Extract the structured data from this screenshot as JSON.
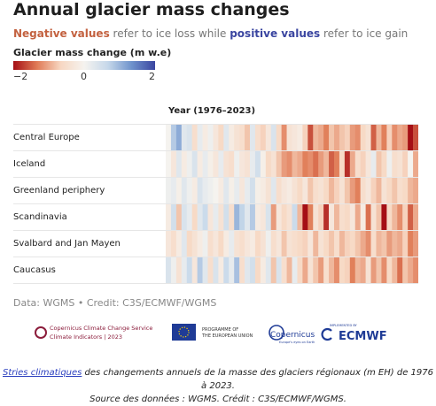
{
  "header": {
    "title": "Annual glacier mass changes",
    "subtitle_neg": "Negative values",
    "subtitle_mid": " refer to ice loss while ",
    "subtitle_pos": "positive values",
    "subtitle_end": " refer to ice gain"
  },
  "legend": {
    "title": "Glacier mass change (m w.e)",
    "ticks": [
      "−2",
      "0",
      "2"
    ],
    "colors": [
      "#a50f15",
      "#e07b56",
      "#f7d7c2",
      "#f5f3ef",
      "#c6d8ea",
      "#6f93cc",
      "#3a45a0"
    ]
  },
  "chart_data": {
    "type": "heatmap",
    "title": "Annual glacier mass changes",
    "xlabel": "Year (1976–2023)",
    "x_range": [
      1976,
      2023
    ],
    "color_range": [
      -2,
      2
    ],
    "rows": [
      "Central Europe",
      "Iceland",
      "Greenland periphery",
      "Scandinavia",
      "Svalbard and Jan Mayen",
      "Caucasus"
    ],
    "values": [
      [
        0.0,
        0.8,
        1.1,
        0.3,
        0.4,
        -0.5,
        0.2,
        -0.2,
        0.1,
        -0.3,
        -0.6,
        0.3,
        -0.2,
        -0.4,
        -0.5,
        -0.8,
        0.3,
        -0.5,
        -0.7,
        -0.3,
        0.4,
        -0.6,
        -1.2,
        -0.4,
        -0.3,
        -0.2,
        -0.7,
        -1.6,
        -0.9,
        -1.0,
        -1.3,
        -0.8,
        -1.0,
        -0.8,
        -0.7,
        -1.1,
        -1.2,
        -0.6,
        -0.4,
        -1.5,
        -0.9,
        -1.3,
        -0.7,
        -1.2,
        -1.0,
        -1.1,
        -2.6,
        -1.6
      ],
      [
        0.0,
        -0.3,
        0.3,
        -0.2,
        0.1,
        0.4,
        -0.2,
        0.2,
        -0.1,
        -0.3,
        0.2,
        -0.4,
        -0.5,
        0.1,
        -0.3,
        -0.4,
        0.2,
        0.5,
        -0.1,
        -0.6,
        -0.4,
        -0.8,
        -1.1,
        -1.2,
        -0.9,
        -1.0,
        -1.3,
        -1.2,
        -1.4,
        -1.1,
        -0.9,
        -1.5,
        -1.3,
        -0.6,
        -1.8,
        -1.0,
        -0.5,
        -0.7,
        -0.3,
        0.2,
        -0.8,
        -0.6,
        0.1,
        -0.5,
        -0.4,
        -0.7,
        0.0,
        -1.0
      ],
      [
        0.1,
        0.2,
        -0.1,
        0.3,
        0.1,
        -0.2,
        0.4,
        0.2,
        0.1,
        0.0,
        -0.2,
        0.3,
        -0.1,
        0.2,
        -0.3,
        0.2,
        0.5,
        -0.1,
        -0.2,
        -0.4,
        0.3,
        -0.5,
        -0.3,
        -0.2,
        -0.4,
        -0.6,
        -0.3,
        -0.8,
        -0.5,
        -0.4,
        -0.6,
        -0.9,
        -0.7,
        -0.4,
        -0.8,
        -1.1,
        -1.3,
        -0.5,
        -0.3,
        -0.7,
        -0.9,
        -0.4,
        -0.6,
        -0.8,
        -0.5,
        -0.6,
        -0.9,
        -1.0
      ],
      [
        -0.2,
        0.5,
        -0.8,
        0.4,
        0.2,
        -0.6,
        0.3,
        0.6,
        -0.3,
        0.2,
        -0.4,
        0.5,
        -0.5,
        1.0,
        0.7,
        0.3,
        0.8,
        -0.2,
        -0.3,
        0.4,
        -1.1,
        -0.3,
        -0.6,
        -0.4,
        0.6,
        -0.9,
        -2.5,
        -1.3,
        -0.4,
        -0.7,
        -1.8,
        -0.3,
        -0.9,
        -0.5,
        -0.6,
        -0.3,
        -1.0,
        -0.2,
        -1.4,
        -0.4,
        -0.8,
        -2.7,
        -0.6,
        -0.9,
        -1.2,
        -0.7,
        -1.5,
        -1.0
      ],
      [
        -0.3,
        -0.5,
        -0.2,
        0.3,
        -0.6,
        -0.4,
        -0.2,
        0.1,
        -0.5,
        -0.3,
        -0.6,
        -0.2,
        0.2,
        -0.4,
        -0.5,
        -0.3,
        -0.2,
        -0.6,
        -0.4,
        0.1,
        -0.5,
        -0.3,
        -0.8,
        -0.4,
        -0.5,
        -0.6,
        -0.7,
        -0.3,
        -0.9,
        -0.4,
        -0.6,
        -0.8,
        -0.5,
        -0.9,
        -0.7,
        -0.6,
        -0.8,
        -1.0,
        -1.2,
        -0.5,
        -0.9,
        -0.8,
        -1.1,
        -0.9,
        -1.0,
        -0.7,
        -1.3,
        -1.1
      ],
      [
        0.4,
        0.1,
        -0.4,
        0.2,
        0.6,
        -0.3,
        0.8,
        0.3,
        -0.5,
        0.4,
        -0.2,
        0.6,
        0.2,
        0.9,
        -0.5,
        0.3,
        0.5,
        -0.6,
        -0.2,
        0.3,
        -0.8,
        0.4,
        -0.5,
        -0.9,
        0.2,
        -0.6,
        -1.0,
        -0.4,
        -0.8,
        -1.1,
        -0.5,
        -0.9,
        -1.2,
        -0.6,
        -0.7,
        -1.3,
        -0.9,
        -1.0,
        -0.4,
        -1.1,
        -0.8,
        -1.2,
        -0.6,
        -0.9,
        -1.4,
        -0.8,
        -1.0,
        -1.2
      ]
    ]
  },
  "footer": {
    "source": "Data: WGMS • Credit: C3S/ECMWF/WGMS",
    "logo_c3s_line1": "Copernicus Climate Change Service",
    "logo_c3s_line2": "Climate Indicators | 2023",
    "logo_eu_line1": "PROGRAMME OF",
    "logo_eu_line2": "THE EUROPEAN UNION",
    "logo_copernicus": "Copernicus",
    "logo_copernicus_sub": "Europe's eyes on Earth",
    "logo_ecmwf_small": "IMPLEMENTED BY",
    "logo_ecmwf": "ECMWF"
  },
  "caption": {
    "link": "Stries climatiques",
    "text": " des changements annuels de la masse des glaciers régionaux (m EH) de 1976 à 2023.",
    "line2": "Source des données : WGMS. Crédit : C3S/ECMWF/WGMS."
  }
}
